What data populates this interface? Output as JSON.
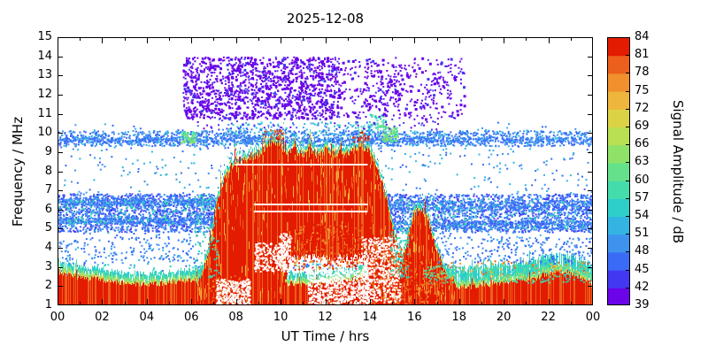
{
  "chart_data": {
    "type": "heatmap",
    "title": "2025-12-08",
    "xlabel": "UT Time / hrs",
    "ylabel": "Frequency / MHz",
    "xlim": [
      0,
      24
    ],
    "ylim": [
      1,
      15
    ],
    "xticks": [
      "00",
      "02",
      "04",
      "06",
      "08",
      "10",
      "12",
      "14",
      "16",
      "18",
      "20",
      "22",
      "00"
    ],
    "yticks": [
      1,
      2,
      3,
      4,
      5,
      6,
      7,
      8,
      9,
      10,
      11,
      12,
      13,
      14,
      15
    ],
    "colorbar": {
      "label": "Signal Amplitude / dB",
      "ticks": [
        39,
        42,
        45,
        48,
        51,
        54,
        57,
        60,
        63,
        66,
        69,
        72,
        75,
        78,
        81,
        84
      ],
      "colors": [
        "#6b04e8",
        "#4338f2",
        "#3a6bf7",
        "#3e93ef",
        "#33b4e2",
        "#2ecfca",
        "#45dcab",
        "#66e18b",
        "#8ee268",
        "#b8e052",
        "#dcd245",
        "#eeb63c",
        "#f1902d",
        "#ec5f1c",
        "#e31b00"
      ]
    },
    "features": {
      "seed": 20251208,
      "bottom_band": {
        "base_top": 2.3,
        "wave_amp": 0.18,
        "noise": 0.3,
        "evening_bump": {
          "t0": 21.5,
          "t1": 23.9,
          "extra": 0.4
        },
        "fringe": {
          "khaki": 0.12,
          "green": 0.3,
          "cyan": 0.55
        }
      },
      "day_envelope": [
        [
          6.2,
          2.1
        ],
        [
          6.5,
          2.8
        ],
        [
          6.8,
          4.3
        ],
        [
          7.1,
          6.2
        ],
        [
          7.4,
          7.6
        ],
        [
          7.8,
          8.4
        ],
        [
          8.2,
          8.7
        ],
        [
          8.6,
          8.8
        ],
        [
          9.0,
          9.0
        ],
        [
          9.4,
          9.5
        ],
        [
          9.7,
          9.7
        ],
        [
          10.0,
          9.3
        ],
        [
          10.3,
          9.0
        ],
        [
          10.6,
          9.2
        ],
        [
          11.0,
          9.0
        ],
        [
          11.3,
          9.3
        ],
        [
          11.6,
          9.0
        ],
        [
          12.0,
          9.2
        ],
        [
          12.3,
          9.0
        ],
        [
          12.6,
          9.1
        ],
        [
          13.0,
          9.0
        ],
        [
          13.3,
          9.3
        ],
        [
          13.6,
          9.5
        ],
        [
          13.9,
          9.2
        ],
        [
          14.2,
          8.6
        ],
        [
          14.5,
          7.6
        ],
        [
          14.8,
          6.3
        ],
        [
          15.0,
          5.2
        ],
        [
          15.2,
          4.2
        ],
        [
          15.45,
          3.4
        ],
        [
          15.7,
          4.8
        ],
        [
          15.95,
          5.8
        ],
        [
          16.2,
          6.3
        ],
        [
          16.45,
          5.9
        ],
        [
          16.7,
          5.2
        ],
        [
          16.95,
          4.2
        ],
        [
          17.2,
          3.3
        ],
        [
          17.5,
          2.7
        ],
        [
          17.8,
          2.3
        ]
      ],
      "low_fill": [
        [
          6.2,
          1.0
        ],
        [
          9.9,
          1.0
        ],
        [
          10.45,
          3.5
        ],
        [
          13.85,
          3.5
        ],
        [
          14.0,
          1.0
        ],
        [
          17.8,
          1.0
        ]
      ],
      "white_lines": [
        {
          "f": 8.35,
          "t0": 7.95,
          "t1": 13.9
        },
        {
          "f": 6.25,
          "t0": 8.8,
          "t1": 13.9
        },
        {
          "f": 5.9,
          "t0": 8.8,
          "t1": 13.9
        }
      ],
      "gap_streaks": {
        "t0": 10.45,
        "t1": 13.85,
        "f0": 2.95,
        "f1": 5.3,
        "density": 0.32
      },
      "purple_box": {
        "t0": 5.6,
        "t1": 18.2,
        "f0": 10.75,
        "f1": 14.0,
        "count": 2600,
        "dense_t1": 12.6,
        "sparse_frac": 0.32
      },
      "speckle_pre": [
        {
          "name": "blue-band-high",
          "t0": 0,
          "t1": 24,
          "f0": 9.35,
          "f1": 10.15,
          "count": 1500,
          "colors": [
            2,
            3,
            2,
            4
          ],
          "size": 2
        },
        {
          "name": "stripe-9p6",
          "t0": 0,
          "t1": 24,
          "f0": 9.55,
          "f1": 9.8,
          "count": 600,
          "colors": [
            2,
            3
          ],
          "size": 2
        },
        {
          "name": "blue-band-mid-am",
          "t0": 0,
          "t1": 7.2,
          "f0": 4.85,
          "f1": 6.85,
          "count": 1300,
          "colors": [
            2,
            3,
            2,
            1
          ],
          "size": 2
        },
        {
          "name": "stripe-5p4-am",
          "t0": 0,
          "t1": 7.1,
          "f0": 5.3,
          "f1": 5.6,
          "count": 400,
          "colors": [
            2,
            3
          ],
          "size": 2
        },
        {
          "name": "stripe-6p4-am",
          "t0": 0,
          "t1": 7.1,
          "f0": 6.25,
          "f1": 6.6,
          "count": 400,
          "colors": [
            2,
            3
          ],
          "size": 2
        },
        {
          "name": "blue-band-mid-pm",
          "t0": 14.6,
          "t1": 24,
          "f0": 4.85,
          "f1": 6.85,
          "count": 1500,
          "colors": [
            2,
            3,
            2,
            1
          ],
          "size": 2
        },
        {
          "name": "stripe-5p2-pm",
          "t0": 14.8,
          "t1": 24,
          "f0": 5.0,
          "f1": 5.45,
          "count": 420,
          "colors": [
            2,
            3
          ],
          "size": 2
        },
        {
          "name": "stripe-6p2-pm",
          "t0": 14.8,
          "t1": 24,
          "f0": 6.0,
          "f1": 6.5,
          "count": 440,
          "colors": [
            2,
            3
          ],
          "size": 2
        },
        {
          "name": "cyan-mid-am",
          "t0": 0,
          "t1": 7,
          "f0": 5.2,
          "f1": 6.6,
          "count": 130,
          "colors": [
            5,
            6
          ],
          "size": 2
        },
        {
          "name": "cyan-mid-pm",
          "t0": 15,
          "t1": 24,
          "f0": 5.0,
          "f1": 6.6,
          "count": 140,
          "colors": [
            5,
            6
          ],
          "size": 2
        },
        {
          "name": "sparse-noise",
          "t0": 0,
          "t1": 24,
          "f0": 3.0,
          "f1": 10.6,
          "count": 900,
          "colors": [
            2,
            3,
            4
          ],
          "size": 2
        },
        {
          "name": "sparse-noise-low",
          "t0": 0,
          "t1": 24,
          "f0": 2.6,
          "f1": 3.2,
          "count": 200,
          "colors": [
            2,
            5
          ],
          "size": 2
        }
      ],
      "speckle_post": [
        {
          "name": "green-cluster-am",
          "t0": 5.5,
          "t1": 6.2,
          "f0": 9.5,
          "f1": 10.1,
          "count": 70,
          "colors": [
            6,
            7,
            8
          ],
          "size": 2
        },
        {
          "name": "green-cluster-pm",
          "t0": 14.5,
          "t1": 15.2,
          "f0": 9.6,
          "f1": 10.35,
          "count": 80,
          "colors": [
            6,
            7,
            8
          ],
          "size": 2
        },
        {
          "name": "green-cluster-high",
          "t0": 13.9,
          "t1": 14.7,
          "f0": 10.2,
          "f1": 11.0,
          "count": 55,
          "colors": [
            5,
            6,
            7
          ],
          "size": 2
        },
        {
          "name": "orange-dots-evening",
          "t0": 17,
          "t1": 24,
          "f0": 2.4,
          "f1": 3.4,
          "count": 90,
          "colors": [
            11,
            12,
            13
          ],
          "size": 2
        },
        {
          "name": "cyan-fringe-evening",
          "t0": 16.4,
          "t1": 24,
          "f0": 2.2,
          "f1": 3.1,
          "count": 240,
          "colors": [
            5,
            6,
            7
          ],
          "size": 2
        },
        {
          "name": "edge-cyan-rise",
          "t0": 6.1,
          "t1": 7.2,
          "f0": 2.5,
          "f1": 6.8,
          "count": 90,
          "colors": [
            5,
            6
          ],
          "size": 2
        },
        {
          "name": "edge-cyan-fall",
          "t0": 14.9,
          "t1": 15.7,
          "f0": 2.5,
          "f1": 5.2,
          "count": 80,
          "colors": [
            5,
            6
          ],
          "size": 2
        },
        {
          "name": "purple-sparse-low",
          "t0": 6,
          "t1": 17.5,
          "f0": 10.2,
          "f1": 10.7,
          "count": 50,
          "colors": [
            0,
            1
          ],
          "size": 2
        },
        {
          "name": "blue-above-blob",
          "t0": 7.5,
          "t1": 14.5,
          "f0": 9.9,
          "f1": 10.6,
          "count": 110,
          "colors": [
            2,
            4,
            5
          ],
          "size": 2
        },
        {
          "name": "red-splash-peaks",
          "t0": 9.2,
          "t1": 10.1,
          "f0": 9.7,
          "f1": 10.2,
          "count": 25,
          "colors": [
            13,
            14
          ],
          "size": 2
        },
        {
          "name": "red-splash-peaks2",
          "t0": 13.2,
          "t1": 13.9,
          "f0": 9.5,
          "f1": 10.1,
          "count": 20,
          "colors": [
            13,
            14
          ],
          "size": 2
        },
        {
          "name": "blue-evening-low",
          "t0": 17,
          "t1": 24,
          "f0": 3.2,
          "f1": 4.6,
          "count": 220,
          "colors": [
            2,
            3
          ],
          "size": 2
        },
        {
          "name": "blue-morning-low",
          "t0": 0,
          "t1": 6.3,
          "f0": 3.2,
          "f1": 4.6,
          "count": 160,
          "colors": [
            2,
            3
          ],
          "size": 2
        }
      ],
      "red_speckles": [
        {
          "t0": 10.45,
          "t1": 14.0,
          "f0": 2.9,
          "f1": 5.3,
          "count": 320
        },
        {
          "t0": 13.9,
          "t1": 15.4,
          "f0": 1.0,
          "f1": 4.2,
          "count": 280
        },
        {
          "t0": 15.4,
          "t1": 17.3,
          "f0": 1.1,
          "f1": 3.4,
          "count": 200
        },
        {
          "t0": 6.7,
          "t1": 8.2,
          "f0": 1.0,
          "f1": 2.6,
          "count": 150
        }
      ],
      "white_speckles": [
        {
          "t0": 11.2,
          "t1": 13.9,
          "f0": 1.0,
          "f1": 2.95,
          "count": 650
        },
        {
          "t0": 13.6,
          "t1": 15.35,
          "f0": 1.2,
          "f1": 4.6,
          "count": 520
        },
        {
          "t0": 7.1,
          "t1": 8.6,
          "f0": 1.0,
          "f1": 2.4,
          "count": 320
        },
        {
          "t0": 8.8,
          "t1": 10.3,
          "f0": 2.8,
          "f1": 4.3,
          "count": 220
        },
        {
          "t0": 9.9,
          "t1": 10.45,
          "f0": 2.9,
          "f1": 4.8,
          "count": 120
        }
      ]
    }
  }
}
